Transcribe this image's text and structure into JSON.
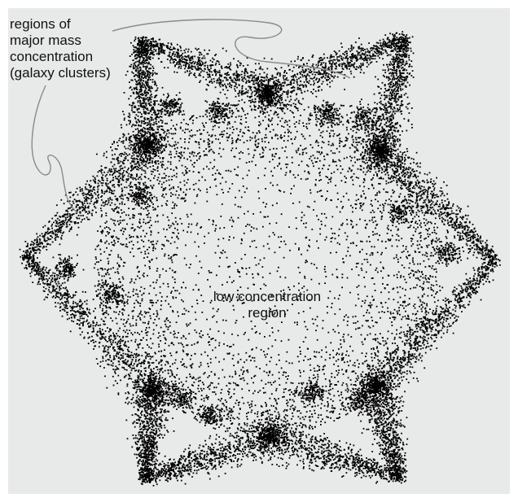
{
  "labels": {
    "clusters": [
      "regions of",
      "major mass",
      "concentration",
      "(galaxy clusters)"
    ],
    "low": [
      "low concentration",
      "region"
    ]
  },
  "colors": {
    "background": "#e8e9e9",
    "points": "#000000",
    "leader_line": "#8a8a8a"
  }
}
